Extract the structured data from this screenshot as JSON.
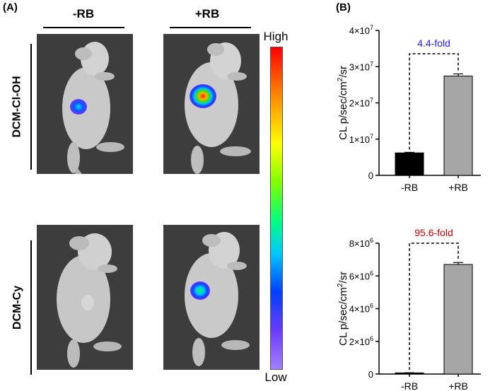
{
  "panel_a": {
    "label": "(A)",
    "columns": [
      "-RB",
      "+RB"
    ],
    "rows": [
      "DCM-Cl-OH",
      "DCM-Cy"
    ],
    "colorbar": {
      "high": "High",
      "low": "Low"
    }
  },
  "panel_b": {
    "label": "(B)"
  },
  "chart_data": [
    {
      "type": "bar",
      "categories": [
        "-RB",
        "+RB"
      ],
      "values": [
        6200000,
        27400000
      ],
      "errors": [
        150000,
        600000
      ],
      "bar_colors": [
        "#000000",
        "#a6a6a6"
      ],
      "ylabel_main": "CL p/sec/cm",
      "ylabel_sup": "2",
      "ylabel_tail": "/sr",
      "ylim": [
        0,
        40000000
      ],
      "ticks": [
        0,
        10000000,
        20000000,
        30000000,
        40000000
      ],
      "tick_mant": [
        "0",
        "1×10",
        "2×10",
        "3×10",
        "4×10"
      ],
      "tick_exp": [
        "",
        "7",
        "7",
        "7",
        "7"
      ],
      "annotation": "4.4-fold",
      "annotation_color": "#1f1fe6"
    },
    {
      "type": "bar",
      "categories": [
        "-RB",
        "+RB"
      ],
      "values": [
        70000,
        6700000
      ],
      "errors": [
        10000,
        120000
      ],
      "bar_colors": [
        "#000000",
        "#a6a6a6"
      ],
      "ylabel_main": "CL p/sec/cm",
      "ylabel_sup": "2",
      "ylabel_tail": "/sr",
      "ylim": [
        0,
        8000000
      ],
      "ticks": [
        0,
        2000000,
        4000000,
        6000000,
        8000000
      ],
      "tick_mant": [
        "0",
        "2×10",
        "4×10",
        "6×10",
        "8×10"
      ],
      "tick_exp": [
        "",
        "6",
        "6",
        "6",
        "6"
      ],
      "annotation": "95.6-fold",
      "annotation_color": "#c00000"
    }
  ]
}
